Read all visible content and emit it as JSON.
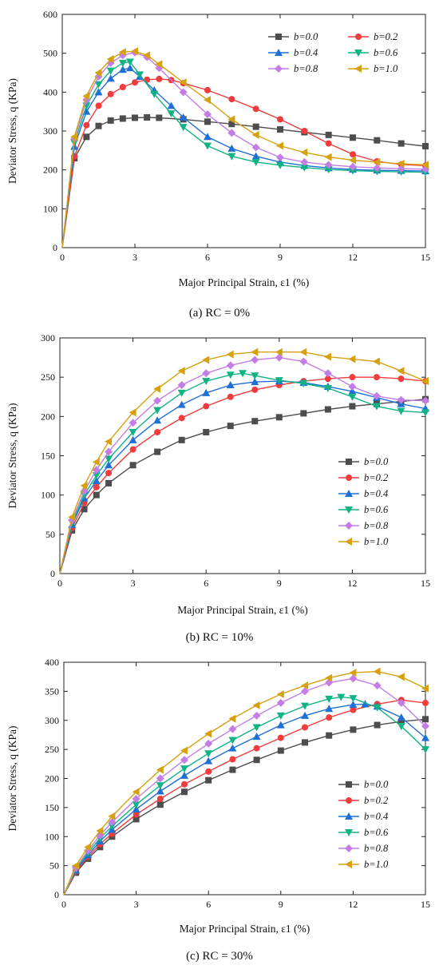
{
  "series_colors": {
    "b=0.0": "#4d4d4d",
    "b=0.2": "#f03c3c",
    "b=0.4": "#1e6fd6",
    "b=0.6": "#10b384",
    "b=0.8": "#c47de6",
    "b=1.0": "#d6a10f"
  },
  "series_markers": {
    "b=0.0": "square",
    "b=0.2": "circle",
    "b=0.4": "triangle-up",
    "b=0.6": "triangle-down",
    "b=0.8": "diamond",
    "b=1.0": "triangle-left"
  },
  "chart_data": [
    {
      "type": "line",
      "caption": "(a) RC = 0%",
      "xlabel": "Major Principal Strain, ε1 (%)",
      "ylabel": "Deviator Stress, q (KPa)",
      "xlim": [
        0,
        15
      ],
      "ylim": [
        0,
        600
      ],
      "xticks": [
        "0",
        "3",
        "6",
        "9",
        "12",
        "15"
      ],
      "yticks": [
        "0",
        "100",
        "200",
        "300",
        "400",
        "500",
        "600"
      ],
      "legend_position": "top-right, two columns",
      "series": [
        {
          "name": "b=0.0",
          "x": [
            0,
            0.5,
            1,
            1.5,
            2,
            2.5,
            3,
            3.5,
            4,
            5,
            6,
            7,
            8,
            9,
            10,
            11,
            12,
            13,
            14,
            15
          ],
          "y": [
            0,
            230,
            285,
            313,
            327,
            332,
            334,
            335,
            334,
            330,
            324,
            318,
            311,
            304,
            297,
            290,
            283,
            276,
            268,
            261
          ]
        },
        {
          "name": "b=0.2",
          "x": [
            0,
            0.5,
            1,
            1.5,
            2,
            2.5,
            3,
            3.5,
            4,
            4.5,
            5,
            6,
            7,
            8,
            9,
            10,
            11,
            12,
            13,
            14,
            15
          ],
          "y": [
            0,
            235,
            315,
            365,
            395,
            413,
            425,
            432,
            434,
            431,
            423,
            405,
            382,
            357,
            330,
            300,
            268,
            240,
            222,
            214,
            211
          ]
        },
        {
          "name": "b=0.4",
          "x": [
            0,
            0.5,
            1,
            1.5,
            2,
            2.5,
            2.8,
            3.2,
            3.8,
            4.5,
            5,
            6,
            7,
            8,
            9,
            10,
            11,
            12,
            13,
            14,
            15
          ],
          "y": [
            0,
            260,
            350,
            400,
            435,
            458,
            462,
            440,
            405,
            365,
            335,
            285,
            255,
            235,
            220,
            211,
            205,
            201,
            199,
            198,
            197
          ]
        },
        {
          "name": "b=0.6",
          "x": [
            0,
            0.5,
            1,
            1.5,
            2,
            2.5,
            2.8,
            3.2,
            3.8,
            4.5,
            5,
            6,
            7,
            8,
            9,
            10,
            11,
            12,
            13,
            14,
            15
          ],
          "y": [
            0,
            270,
            365,
            420,
            455,
            475,
            478,
            445,
            395,
            345,
            310,
            262,
            235,
            220,
            212,
            206,
            201,
            198,
            196,
            195,
            194
          ]
        },
        {
          "name": "b=0.8",
          "x": [
            0,
            0.5,
            1,
            1.5,
            2,
            2.5,
            3,
            3.5,
            4,
            5,
            6,
            7,
            8,
            9,
            10,
            11,
            12,
            13,
            14,
            15
          ],
          "y": [
            0,
            280,
            380,
            440,
            475,
            495,
            502,
            490,
            462,
            400,
            343,
            295,
            258,
            232,
            220,
            213,
            208,
            205,
            203,
            202
          ]
        },
        {
          "name": "b=1.0",
          "x": [
            0,
            0.5,
            1,
            1.5,
            2,
            2.5,
            3,
            3.5,
            4,
            5,
            6,
            7,
            8,
            9,
            10,
            11,
            12,
            13,
            14,
            15
          ],
          "y": [
            0,
            285,
            390,
            450,
            485,
            503,
            505,
            495,
            472,
            425,
            380,
            330,
            290,
            262,
            245,
            233,
            225,
            220,
            216,
            213
          ]
        }
      ]
    },
    {
      "type": "line",
      "caption": "(b) RC = 10%",
      "xlabel": "Major Principal Strain, ε1 (%)",
      "ylabel": "Deviator Stress, q (KPa)",
      "xlim": [
        0,
        15
      ],
      "ylim": [
        0,
        300
      ],
      "xticks": [
        "0",
        "3",
        "6",
        "9",
        "12",
        "15"
      ],
      "yticks": [
        "0",
        "50",
        "100",
        "150",
        "200",
        "250",
        "300"
      ],
      "legend_position": "lower-right",
      "series": [
        {
          "name": "b=0.0",
          "x": [
            0,
            0.5,
            1,
            1.5,
            2,
            3,
            4,
            5,
            6,
            7,
            8,
            9,
            10,
            11,
            12,
            13,
            14,
            15
          ],
          "y": [
            0,
            55,
            82,
            100,
            115,
            138,
            155,
            170,
            180,
            188,
            194,
            199,
            204,
            209,
            213,
            216,
            219,
            222
          ]
        },
        {
          "name": "b=0.2",
          "x": [
            0,
            0.5,
            1,
            1.5,
            2,
            3,
            4,
            5,
            6,
            7,
            8,
            9,
            10,
            11,
            12,
            13,
            14,
            15
          ],
          "y": [
            0,
            58,
            90,
            110,
            128,
            158,
            180,
            198,
            213,
            225,
            234,
            240,
            245,
            248,
            250,
            250,
            248,
            245
          ]
        },
        {
          "name": "b=0.4",
          "x": [
            0,
            0.5,
            1,
            1.5,
            2,
            3,
            4,
            5,
            6,
            7,
            8,
            9,
            10,
            11,
            12,
            13,
            14,
            15
          ],
          "y": [
            0,
            62,
            96,
            118,
            138,
            170,
            195,
            215,
            230,
            240,
            244,
            245,
            243,
            238,
            232,
            224,
            216,
            210
          ]
        },
        {
          "name": "b=0.6",
          "x": [
            0,
            0.5,
            1,
            1.5,
            2,
            3,
            4,
            5,
            6,
            7,
            7.5,
            8,
            9,
            10,
            11,
            12,
            13,
            14,
            15
          ],
          "y": [
            0,
            65,
            100,
            125,
            146,
            180,
            208,
            230,
            245,
            253,
            255,
            252,
            246,
            242,
            236,
            225,
            213,
            207,
            205
          ]
        },
        {
          "name": "b=0.8",
          "x": [
            0,
            0.5,
            1,
            1.5,
            2,
            3,
            4,
            5,
            6,
            7,
            8,
            9,
            10,
            11,
            12,
            13,
            14,
            15
          ],
          "y": [
            0,
            68,
            105,
            132,
            155,
            192,
            220,
            240,
            255,
            265,
            272,
            275,
            270,
            255,
            238,
            226,
            221,
            220
          ]
        },
        {
          "name": "b=1.0",
          "x": [
            0,
            0.5,
            1,
            1.5,
            2,
            3,
            4,
            5,
            6,
            7,
            8,
            9,
            10,
            11,
            12,
            13,
            14,
            15
          ],
          "y": [
            0,
            72,
            112,
            142,
            168,
            205,
            235,
            258,
            272,
            279,
            282,
            282,
            282,
            276,
            273,
            270,
            258,
            245
          ]
        }
      ]
    },
    {
      "type": "line",
      "caption": "(c) RC = 30%",
      "xlabel": "Major Principal Strain, ε1 (%)",
      "ylabel": "Deviator Stress, q (KPa)",
      "xlim": [
        0,
        15
      ],
      "ylim": [
        0,
        400
      ],
      "xticks": [
        "0",
        "3",
        "6",
        "9",
        "12",
        "15"
      ],
      "yticks": [
        "0",
        "50",
        "100",
        "150",
        "200",
        "250",
        "300",
        "350",
        "400"
      ],
      "legend_position": "lower-right",
      "series": [
        {
          "name": "b=0.0",
          "x": [
            0,
            0.5,
            1,
            1.5,
            2,
            3,
            4,
            5,
            6,
            7,
            8,
            9,
            10,
            11,
            12,
            13,
            14,
            15
          ],
          "y": [
            0,
            38,
            62,
            82,
            100,
            130,
            155,
            177,
            197,
            215,
            232,
            248,
            262,
            274,
            284,
            292,
            298,
            302
          ]
        },
        {
          "name": "b=0.2",
          "x": [
            0,
            0.5,
            1,
            1.5,
            2,
            3,
            4,
            5,
            6,
            7,
            8,
            9,
            10,
            11,
            12,
            13,
            14,
            15
          ],
          "y": [
            0,
            40,
            65,
            87,
            105,
            138,
            165,
            190,
            212,
            233,
            252,
            270,
            288,
            305,
            318,
            328,
            335,
            330
          ]
        },
        {
          "name": "b=0.4",
          "x": [
            0,
            0.5,
            1,
            1.5,
            2,
            3,
            4,
            5,
            6,
            7,
            8,
            9,
            10,
            11,
            12,
            12.5,
            13,
            14,
            15
          ],
          "y": [
            0,
            42,
            68,
            92,
            112,
            147,
            178,
            205,
            230,
            252,
            272,
            292,
            308,
            320,
            327,
            328,
            324,
            305,
            270
          ]
        },
        {
          "name": "b=0.6",
          "x": [
            0,
            0.5,
            1,
            1.5,
            2,
            3,
            4,
            5,
            6,
            7,
            8,
            9,
            10,
            11,
            11.5,
            12,
            13,
            14,
            15
          ],
          "y": [
            0,
            44,
            72,
            97,
            118,
            155,
            188,
            217,
            243,
            266,
            288,
            308,
            325,
            337,
            340,
            338,
            322,
            290,
            250
          ]
        },
        {
          "name": "b=0.8",
          "x": [
            0,
            0.5,
            1,
            1.5,
            2,
            3,
            4,
            5,
            6,
            7,
            8,
            9,
            10,
            11,
            12,
            13,
            14,
            15
          ],
          "y": [
            0,
            46,
            76,
            102,
            125,
            165,
            200,
            232,
            260,
            285,
            308,
            330,
            350,
            365,
            372,
            360,
            330,
            290
          ]
        },
        {
          "name": "b=1.0",
          "x": [
            0,
            0.5,
            1,
            1.5,
            2,
            3,
            4,
            5,
            6,
            7,
            8,
            9,
            10,
            11,
            12,
            13,
            14,
            15
          ],
          "y": [
            0,
            50,
            82,
            110,
            135,
            177,
            215,
            248,
            277,
            303,
            326,
            345,
            360,
            373,
            382,
            384,
            375,
            355
          ]
        }
      ]
    }
  ]
}
